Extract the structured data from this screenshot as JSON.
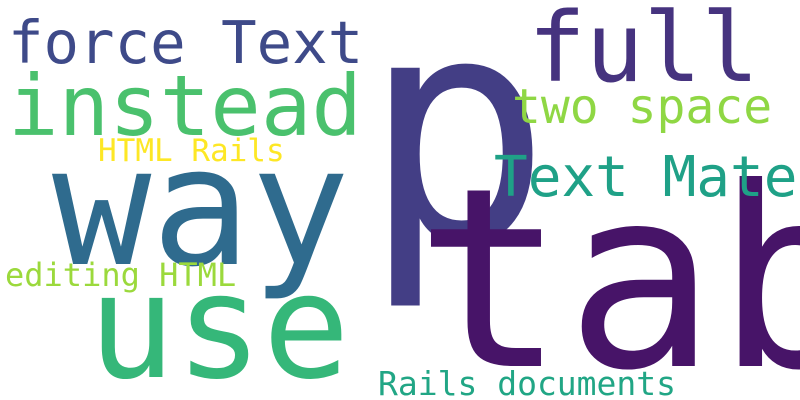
{
  "words": {
    "p": {
      "text": "p",
      "color": "#433e85"
    },
    "tab": {
      "text": "tab",
      "color": "#471468"
    },
    "way": {
      "text": "way",
      "color": "#2f6b8e"
    },
    "use": {
      "text": "use",
      "color": "#35b779"
    },
    "instead": {
      "text": "instead",
      "color": "#4ac16d"
    },
    "full": {
      "text": "full",
      "color": "#46337f"
    },
    "force_text": {
      "text": "force Text",
      "color": "#3e4a89"
    },
    "text_mate": {
      "text": "Text Mate",
      "color": "#1fa187"
    },
    "two_space": {
      "text": "two space",
      "color": "#8fd744"
    },
    "html_rails": {
      "text": "HTML Rails",
      "color": "#fde725"
    },
    "editing_html": {
      "text": "editing HTML",
      "color": "#9bd93c"
    },
    "rails_documents": {
      "text": "Rails documents",
      "color": "#21a685"
    }
  }
}
